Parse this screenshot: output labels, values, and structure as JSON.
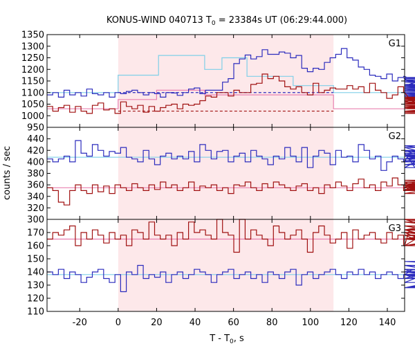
{
  "chart_data": {
    "type": "line",
    "title_main": "KONUS-WIND 040713 T",
    "title_sub": "0",
    "title_rest": " = 23384s UT (06:29:44.000)",
    "xlabel_main": "T - T",
    "xlabel_sub": "0",
    "xlabel_rest": ", s",
    "ylabel": "counts / sec",
    "xlim": [
      -37,
      149
    ],
    "x_ticks": [
      "-20",
      "0",
      "20",
      "40",
      "60",
      "80",
      "100",
      "120",
      "140"
    ],
    "shaded_interval": [
      0,
      112
    ],
    "colors": {
      "g_blue": "#2b2bbd",
      "g_red": "#a01010",
      "fit_blue": "#7ecfe8",
      "fit_pink": "#e880b0",
      "shade": "#fde8ea",
      "dash_blue": "#2b2bbd",
      "dash_red": "#a01010"
    },
    "panels": [
      {
        "label": "G1",
        "ylim": [
          950,
          1350
        ],
        "y_ticks": [
          "950",
          "1000",
          "1050",
          "1100",
          "1150",
          "1200",
          "1250",
          "1300",
          "1350"
        ],
        "dashed_levels": [
          1100,
          1020
        ],
        "fit_blue": [
          [
            -37,
            1100
          ],
          [
            0,
            1100
          ],
          [
            0,
            1175
          ],
          [
            21,
            1175
          ],
          [
            21,
            1260
          ],
          [
            45,
            1260
          ],
          [
            45,
            1200
          ],
          [
            54,
            1200
          ],
          [
            54,
            1250
          ],
          [
            67,
            1250
          ],
          [
            67,
            1170
          ],
          [
            91,
            1170
          ],
          [
            91,
            1130
          ],
          [
            112,
            1130
          ],
          [
            112,
            1100
          ],
          [
            149,
            1100
          ]
        ],
        "fit_pink": [
          [
            -37,
            1030
          ],
          [
            0,
            1030
          ],
          [
            0,
            1070
          ],
          [
            20,
            1070
          ],
          [
            20,
            1110
          ],
          [
            45,
            1110
          ],
          [
            45,
            1090
          ],
          [
            112,
            1090
          ],
          [
            112,
            1030
          ],
          [
            149,
            1030
          ]
        ],
        "series": [
          {
            "color_key": "g_blue",
            "x_start": -37,
            "step": 2.944,
            "values": [
              1090,
              1100,
              1080,
              1110,
              1090,
              1100,
              1085,
              1115,
              1095,
              1090,
              1100,
              1080,
              1100,
              1095,
              1105,
              1110,
              1100,
              1090,
              1100,
              1095,
              1080,
              1100,
              1098,
              1088,
              1100,
              1115,
              1120,
              1095,
              1110,
              1110,
              1110,
              1145,
              1160,
              1225,
              1245,
              1262,
              1245,
              1255,
              1285,
              1265,
              1265,
              1275,
              1270,
              1250,
              1260,
              1205,
              1190,
              1205,
              1200,
              1230,
              1250,
              1265,
              1290,
              1250,
              1240,
              1210,
              1200,
              1175,
              1170,
              1160,
              1180,
              1150,
              1165,
              1170,
              1160,
              1130,
              1150,
              1160,
              1165,
              1155,
              1135,
              1110,
              1125,
              1130,
              1120,
              1145,
              1130,
              1150,
              1125,
              1110,
              1095,
              1100,
              1080,
              1100,
              1090,
              1120,
              1110,
              1100,
              1095,
              1110,
              1100,
              1100,
              1085,
              1110,
              1100,
              1100,
              1105,
              1110,
              1085,
              1105,
              1115,
              1100,
              1100,
              1080,
              1095,
              1105,
              1100,
              1080,
              1100,
              1110,
              1100,
              1090,
              1100,
              1085
            ]
          },
          {
            "color_key": "g_red",
            "x_start": -37,
            "step": 2.944,
            "values": [
              1040,
              1020,
              1035,
              1045,
              1015,
              1040,
              1020,
              1010,
              1045,
              1055,
              1025,
              1030,
              1010,
              1060,
              1040,
              1030,
              1045,
              1015,
              1040,
              1020,
              1035,
              1045,
              1050,
              1030,
              1050,
              1045,
              1050,
              1065,
              1085,
              1080,
              1100,
              1100,
              1085,
              1110,
              1100,
              1100,
              1135,
              1140,
              1180,
              1160,
              1170,
              1150,
              1125,
              1115,
              1125,
              1100,
              1090,
              1140,
              1100,
              1110,
              1120,
              1115,
              1115,
              1130,
              1115,
              1125,
              1100,
              1140,
              1110,
              1100,
              1075,
              1090,
              1125,
              1100,
              1075,
              1060,
              1080,
              1075,
              1060,
              1050,
              1070,
              1080,
              1065,
              1080,
              1045,
              1030,
              1055,
              1040,
              1020,
              1050,
              1060,
              1035,
              1040,
              1020,
              1030,
              1040,
              1020,
              1015,
              1045,
              1010,
              1030,
              1050,
              1040,
              1035,
              1020,
              1035,
              1060,
              1040,
              1020,
              1040,
              1015,
              1030,
              1045,
              1020,
              1010,
              1040,
              1035,
              1020,
              1045,
              1030,
              1050,
              1040,
              1060,
              1045
            ]
          }
        ]
      },
      {
        "label": "G2",
        "ylim": [
          300,
          460
        ],
        "y_ticks": [
          "300",
          "320",
          "340",
          "360",
          "380",
          "400",
          "420",
          "440"
        ],
        "fit_blue": [
          [
            -37,
            408
          ],
          [
            149,
            408
          ]
        ],
        "fit_pink": [
          [
            -37,
            355
          ],
          [
            149,
            355
          ]
        ],
        "series": [
          {
            "color_key": "g_blue",
            "x_start": -37,
            "step": 2.944,
            "values": [
              405,
              400,
              405,
              410,
              400,
              437,
              415,
              410,
              430,
              420,
              410,
              418,
              415,
              425,
              408,
              405,
              400,
              420,
              405,
              395,
              410,
              415,
              405,
              410,
              405,
              418,
              400,
              430,
              420,
              405,
              418,
              420,
              400,
              410,
              415,
              400,
              420,
              410,
              405,
              395,
              410,
              405,
              425,
              410,
              400,
              425,
              390,
              410,
              420,
              415,
              395,
              420,
              408,
              410,
              400,
              430,
              420,
              405,
              410,
              385,
              400,
              410,
              405,
              400,
              415,
              390,
              405,
              412,
              420,
              400,
              425,
              405,
              420,
              410,
              410,
              395,
              410,
              420,
              395,
              405,
              405,
              418,
              428,
              402,
              405,
              420,
              410,
              395,
              410,
              400,
              412,
              400,
              410,
              415,
              405,
              410,
              405,
              412,
              400,
              410,
              415,
              405,
              400,
              415,
              420,
              410,
              400,
              405,
              410,
              400,
              410,
              410,
              405,
              410
            ]
          },
          {
            "color_key": "g_red",
            "x_start": -37,
            "step": 2.944,
            "values": [
              355,
              350,
              330,
              325,
              350,
              360,
              350,
              345,
              360,
              348,
              358,
              345,
              360,
              355,
              350,
              362,
              355,
              350,
              360,
              352,
              365,
              355,
              360,
              350,
              355,
              365,
              350,
              358,
              355,
              360,
              350,
              355,
              345,
              360,
              358,
              365,
              355,
              350,
              362,
              355,
              365,
              360,
              355,
              350,
              358,
              362,
              350,
              355,
              345,
              360,
              355,
              365,
              358,
              350,
              362,
              370,
              355,
              360,
              350,
              365,
              358,
              372,
              360,
              350,
              355,
              365,
              350,
              355,
              360,
              350,
              358,
              355,
              345,
              360,
              350,
              365,
              355,
              352,
              360,
              358,
              350,
              362,
              355,
              350,
              358,
              368,
              355,
              360,
              350,
              355,
              362,
              358,
              355,
              350,
              362,
              358,
              368,
              360,
              350,
              355,
              362,
              358,
              355,
              360,
              350,
              358,
              365,
              360,
              362,
              358,
              355,
              360,
              365,
              360
            ]
          }
        ]
      },
      {
        "label": "G3",
        "ylim": [
          110,
          180
        ],
        "y_ticks": [
          "110",
          "120",
          "130",
          "140",
          "150",
          "160",
          "170"
        ],
        "fit_blue": [
          [
            -37,
            138
          ],
          [
            149,
            138
          ]
        ],
        "fit_pink": [
          [
            -37,
            165
          ],
          [
            149,
            165
          ]
        ],
        "series": [
          {
            "color_key": "g_red",
            "x_start": -37,
            "step": 2.944,
            "values": [
              165,
              170,
              168,
              172,
              175,
              160,
              170,
              165,
              172,
              168,
              162,
              170,
              165,
              168,
              160,
              172,
              170,
              165,
              178,
              168,
              165,
              168,
              160,
              170,
              165,
              178,
              170,
              172,
              168,
              165,
              182,
              170,
              168,
              155,
              180,
              165,
              172,
              168,
              165,
              160,
              175,
              170,
              165,
              168,
              172,
              165,
              155,
              170,
              175,
              168,
              162,
              165,
              170,
              158,
              172,
              165,
              168,
              170,
              165,
              162,
              170,
              165,
              168,
              160,
              172,
              170,
              165,
              168,
              160,
              175,
              170,
              168,
              165,
              172,
              182,
              165,
              170,
              168,
              165,
              160,
              172,
              170,
              165,
              178,
              168,
              165,
              170,
              160,
              172,
              168,
              165,
              170,
              172,
              180,
              165,
              168,
              170,
              165,
              182,
              170,
              168,
              165,
              172,
              165,
              170,
              175,
              168,
              165,
              172,
              170,
              165,
              168,
              170,
              168
            ]
          },
          {
            "color_key": "g_blue",
            "x_start": -37,
            "step": 2.944,
            "values": [
              140,
              138,
              142,
              135,
              140,
              138,
              132,
              136,
              140,
              142,
              135,
              132,
              138,
              125,
              140,
              138,
              145,
              135,
              138,
              136,
              140,
              132,
              138,
              140,
              135,
              138,
              142,
              140,
              138,
              132,
              138,
              140,
              142,
              135,
              138,
              140,
              135,
              138,
              132,
              140,
              138,
              135,
              140,
              142,
              130,
              138,
              140,
              135,
              138,
              140,
              142,
              138,
              135,
              140,
              138,
              142,
              138,
              140,
              135,
              138,
              140,
              138,
              135,
              138,
              140,
              142,
              138,
              132,
              140,
              138,
              135,
              145,
              138,
              140,
              135,
              138,
              128,
              140,
              138,
              142,
              138,
              140,
              135,
              138,
              138,
              128,
              140,
              138,
              135,
              140,
              138,
              142,
              138,
              135,
              140,
              138,
              138,
              145,
              138,
              140,
              135,
              140,
              142,
              138,
              140,
              148,
              138,
              142,
              135,
              138,
              128,
              140,
              138,
              140
            ]
          }
        ]
      }
    ]
  }
}
